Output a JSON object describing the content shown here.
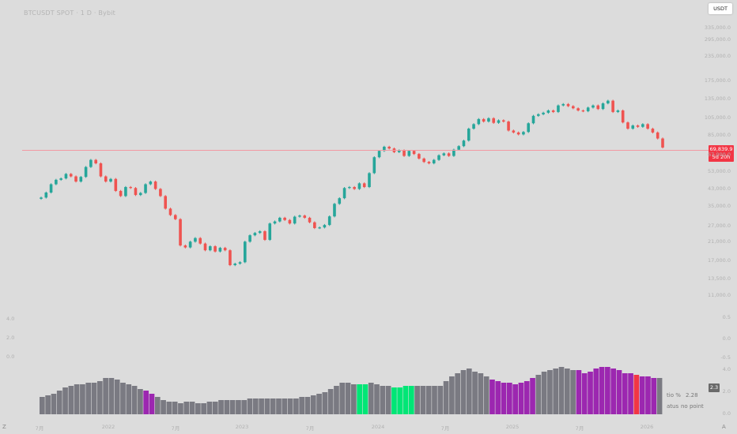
{
  "title": "BTCUSDT SPOT · 1 D · Bybit",
  "currency_button": "USDT",
  "price_tag": {
    "price": "69,839.9",
    "countdown": "5d 20h",
    "color": "#f23645"
  },
  "price_axis": [
    "335,000.0",
    "295,000.0",
    "235,000.0",
    "175,000.0",
    "135,000.0",
    "105,000.0",
    "85,000.0",
    "67,000.0",
    "53,000.0",
    "43,000.0",
    "35,000.0",
    "27,000.0",
    "21,000.0",
    "17,000.0",
    "13,500.0",
    "11,000.0"
  ],
  "osc_right_axis": [
    "0.5",
    "0.0",
    "-0.5",
    "4.0",
    "2.0",
    "0.0"
  ],
  "osc_left_axis": [
    "4.0",
    "2.0",
    "0.0"
  ],
  "time_axis": [
    "7月",
    "2022",
    "7月",
    "2023",
    "7月",
    "2024",
    "7月",
    "2025",
    "7月",
    "2026"
  ],
  "legend": {
    "ratio_label": "tio %",
    "ratio_value": "2.28",
    "status_label": "atus",
    "status_value": "no point"
  },
  "indicator_badge": "2.3",
  "icons": {
    "timezone": "Z",
    "auto_scale": "A"
  },
  "colors": {
    "up": "#26a69a",
    "down": "#ef5350",
    "gray": "#7a7a82",
    "purple": "#9c27b0",
    "green": "#00e676",
    "red": "#f23645"
  },
  "chart_data": {
    "type": "candlestick",
    "x_range": [
      "2021-07",
      "2026-02"
    ],
    "price_close_series": [
      37800,
      40200,
      44500,
      47000,
      47800,
      50500,
      49000,
      46000,
      48700,
      55000,
      60000,
      57500,
      49000,
      46000,
      47500,
      41000,
      38500,
      43000,
      42500,
      39000,
      40000,
      44500,
      46000,
      42000,
      38500,
      33000,
      30500,
      29000,
      21000,
      20500,
      22000,
      23000,
      21500,
      19800,
      20800,
      19500,
      20400,
      19800,
      16500,
      16800,
      17100,
      22000,
      23800,
      24500,
      25000,
      22500,
      27500,
      28200,
      29500,
      28700,
      27500,
      29900,
      30300,
      29500,
      27900,
      26000,
      26200,
      27000,
      30000,
      35000,
      37500,
      42500,
      43000,
      42000,
      45000,
      43000,
      51000,
      62000,
      67000,
      70500,
      69000,
      66000,
      67500,
      63000,
      67000,
      64500,
      61000,
      58500,
      57500,
      60000,
      63500,
      65000,
      63000,
      68000,
      71000,
      76000,
      88000,
      93000,
      99000,
      96000,
      100000,
      94500,
      97500,
      96000,
      86000,
      84000,
      82000,
      84500,
      94000,
      103000,
      105000,
      107000,
      110000,
      108000,
      117000,
      119000,
      116000,
      113000,
      110000,
      109000,
      114000,
      117000,
      112000,
      120000,
      124000,
      108000,
      110000,
      95000,
      88000,
      91500,
      90000,
      93000,
      88000,
      84000,
      78000,
      69839.9
    ],
    "volume_ratio_ylim": [
      0,
      4.0
    ],
    "volume_ratio_values": [
      1.1,
      1.2,
      1.3,
      1.5,
      1.7,
      1.8,
      1.9,
      1.9,
      2.0,
      2.0,
      2.1,
      2.3,
      2.3,
      2.2,
      2.0,
      1.9,
      1.8,
      1.6,
      1.5,
      1.3,
      1.1,
      0.9,
      0.8,
      0.8,
      0.7,
      0.8,
      0.8,
      0.7,
      0.7,
      0.8,
      0.8,
      0.9,
      0.9,
      0.9,
      0.9,
      0.9,
      1.0,
      1.0,
      1.0,
      1.0,
      1.0,
      1.0,
      1.0,
      1.0,
      1.0,
      1.1,
      1.1,
      1.2,
      1.3,
      1.4,
      1.6,
      1.8,
      2.0,
      2.0,
      1.9,
      1.9,
      1.9,
      2.0,
      1.9,
      1.8,
      1.8,
      1.7,
      1.7,
      1.8,
      1.8,
      1.8,
      1.8,
      1.8,
      1.8,
      1.8,
      2.1,
      2.4,
      2.6,
      2.8,
      2.9,
      2.7,
      2.6,
      2.4,
      2.2,
      2.1,
      2.0,
      2.0,
      1.9,
      2.0,
      2.1,
      2.3,
      2.5,
      2.7,
      2.8,
      2.9,
      3.0,
      2.9,
      2.8,
      2.8,
      2.6,
      2.7,
      2.9,
      3.0,
      3.0,
      2.9,
      2.8,
      2.6,
      2.6,
      2.5,
      2.4,
      2.4,
      2.3,
      2.3
    ]
  }
}
